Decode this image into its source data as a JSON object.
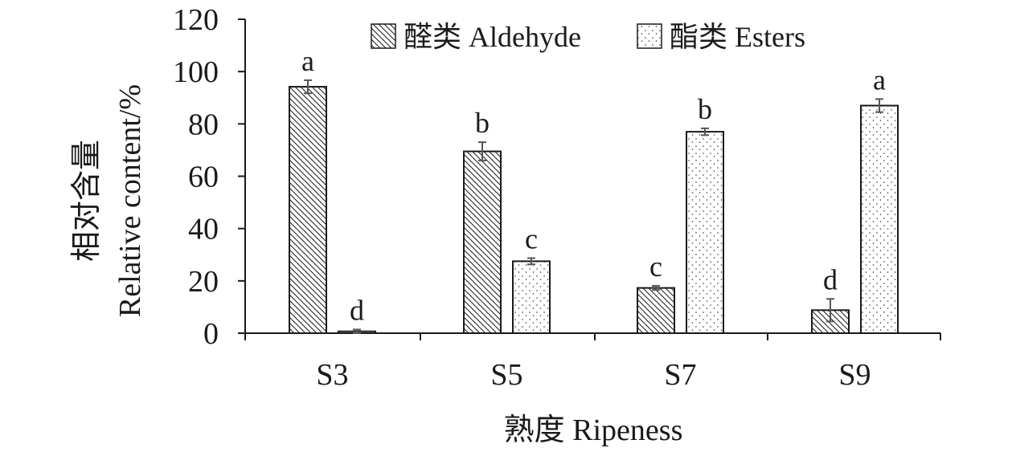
{
  "chart_data": {
    "type": "bar",
    "xlabel": "熟度 Ripeness",
    "ylabel_line1": "相对含量",
    "ylabel_line2": "Relative content/%",
    "ylim": [
      0,
      120
    ],
    "yticks": [
      0,
      20,
      40,
      60,
      80,
      100,
      120
    ],
    "grid": false,
    "legend_position": "top-center",
    "categories": [
      "S3",
      "S5",
      "S7",
      "S9"
    ],
    "series": [
      {
        "name": "醛类 Aldehyde",
        "pattern": "diagonal-hatch",
        "values": [
          94.2,
          69.5,
          17.3,
          8.8
        ],
        "errors": [
          2.5,
          3.5,
          0.8,
          4.3
        ],
        "letters": [
          "a",
          "b",
          "c",
          "d"
        ]
      },
      {
        "name": "酯类 Esters",
        "pattern": "dots",
        "values": [
          0.7,
          27.5,
          77.0,
          87.0
        ],
        "errors": [
          0.7,
          1.2,
          1.3,
          2.5
        ],
        "letters": [
          "d",
          "c",
          "b",
          "a"
        ]
      }
    ]
  },
  "colors": {
    "axis": "#1a1a1a",
    "bar_stroke": "#1a1a1a",
    "bar_fill": "#ffffff",
    "error_bar": "#555555"
  }
}
